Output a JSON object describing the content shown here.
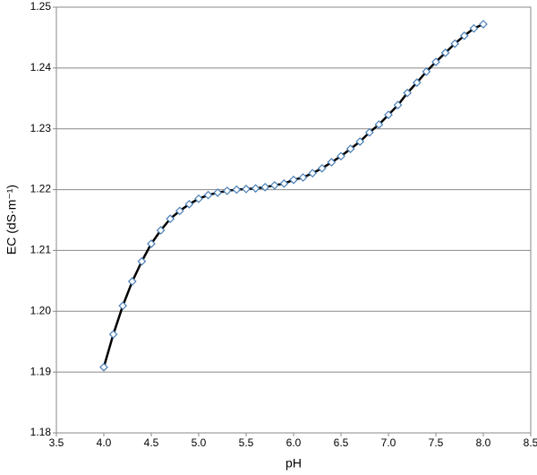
{
  "chart_data": {
    "type": "line",
    "xlabel": "pH",
    "ylabel": "EC (dS·m⁻¹)",
    "x": [
      4.0,
      4.1,
      4.2,
      4.3,
      4.4,
      4.5,
      4.6,
      4.7,
      4.8,
      4.9,
      5.0,
      5.1,
      5.2,
      5.3,
      5.4,
      5.5,
      5.6,
      5.7,
      5.8,
      5.9,
      6.0,
      6.1,
      6.2,
      6.3,
      6.4,
      6.5,
      6.6,
      6.7,
      6.8,
      6.9,
      7.0,
      7.1,
      7.2,
      7.3,
      7.4,
      7.5,
      7.6,
      7.7,
      7.8,
      7.9,
      8.0
    ],
    "series": [
      {
        "color": "#000000",
        "marker_color": "#4a7fb5",
        "values": [
          1.1908,
          1.1962,
          1.2009,
          1.2049,
          1.2082,
          1.2111,
          1.2133,
          1.2152,
          1.2165,
          1.2176,
          1.2185,
          1.2191,
          1.2195,
          1.2198,
          1.22,
          1.2201,
          1.2202,
          1.2204,
          1.2207,
          1.221,
          1.2216,
          1.222,
          1.2227,
          1.2235,
          1.2245,
          1.2255,
          1.2267,
          1.2279,
          1.2294,
          1.2307,
          1.2323,
          1.2339,
          1.2359,
          1.2376,
          1.2394,
          1.241,
          1.2425,
          1.244,
          1.2453,
          1.2465,
          1.2472
        ]
      }
    ],
    "xlim": [
      3.5,
      8.5
    ],
    "xticks": [
      3.5,
      {
        "value": 4,
        "label": "4.0"
      },
      4.5,
      {
        "value": 5,
        "label": "5.0"
      },
      5.5,
      {
        "value": 6,
        "label": "6.0"
      },
      6.5,
      {
        "value": 7,
        "label": "7.0"
      },
      7.5,
      {
        "value": 8,
        "label": "8.0"
      },
      8.5
    ],
    "ylim": [
      1.18,
      1.25
    ],
    "yticks": [
      1.18,
      1.19,
      {
        "value": 1.2,
        "label": "1.20"
      },
      1.21,
      1.22,
      1.23,
      1.24,
      1.25
    ],
    "grid": true
  }
}
